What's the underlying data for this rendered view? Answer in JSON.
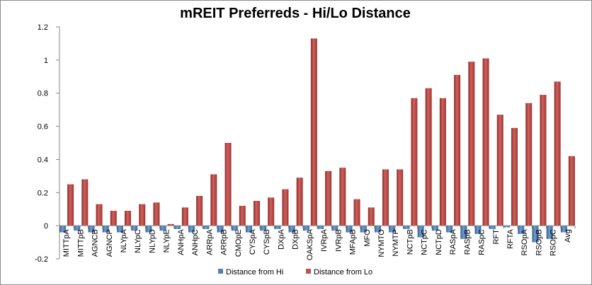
{
  "chart_data": {
    "type": "bar",
    "title": "mREIT Preferreds - Hi/Lo Distance",
    "xlabel": "",
    "ylabel": "",
    "ylim": [
      -0.2,
      1.2
    ],
    "yticks": [
      "-0.2",
      "0",
      "0.2",
      "0.4",
      "0.6",
      "0.8",
      "1",
      "1.2"
    ],
    "grid": false,
    "legend_position": "bottom",
    "categories": [
      "MITTpA",
      "MITTpB",
      "AGNCB",
      "AGNCP",
      "NLYpA",
      "NLYpC",
      "NLYpD",
      "NLYpE",
      "ANHpA",
      "ANHpC",
      "ARRpA",
      "ARRpB",
      "CMOpE",
      "CYSpA",
      "CYSpB",
      "DXpA",
      "DXpB",
      "OAKSpA",
      "IVRpA",
      "IVRpB",
      "MFApB",
      "MFO",
      "NYMTO",
      "NYMTP",
      "NCTpB",
      "NCTpC",
      "NCTpD",
      "RASpA",
      "RASpB",
      "RASpC",
      "RFT",
      "RFTA",
      "RSOpA",
      "RSOpB",
      "RSOpC",
      "Avg"
    ],
    "series": [
      {
        "name": "Distance from Hi",
        "color": "#4f81bd",
        "values": [
          -0.04,
          -0.03,
          -0.04,
          -0.04,
          -0.04,
          -0.03,
          -0.04,
          -0.03,
          -0.02,
          -0.04,
          -0.02,
          -0.04,
          -0.03,
          -0.04,
          -0.03,
          -0.02,
          -0.04,
          -0.03,
          -0.02,
          -0.03,
          -0.04,
          -0.04,
          -0.04,
          -0.04,
          -0.02,
          -0.07,
          -0.03,
          -0.04,
          -0.08,
          -0.05,
          -0.02,
          -0.01,
          -0.05,
          -0.1,
          -0.08,
          -0.04
        ]
      },
      {
        "name": "Distance from Lo",
        "color": "#c0504d",
        "values": [
          0.25,
          0.28,
          0.13,
          0.09,
          0.09,
          0.13,
          0.14,
          0.01,
          0.11,
          0.18,
          0.31,
          0.5,
          0.12,
          0.15,
          0.17,
          0.22,
          0.29,
          1.13,
          0.33,
          0.35,
          0.16,
          0.11,
          0.34,
          0.34,
          0.77,
          0.83,
          0.77,
          0.91,
          0.99,
          1.01,
          0.67,
          0.59,
          0.74,
          0.79,
          0.87,
          0.42
        ]
      }
    ]
  }
}
